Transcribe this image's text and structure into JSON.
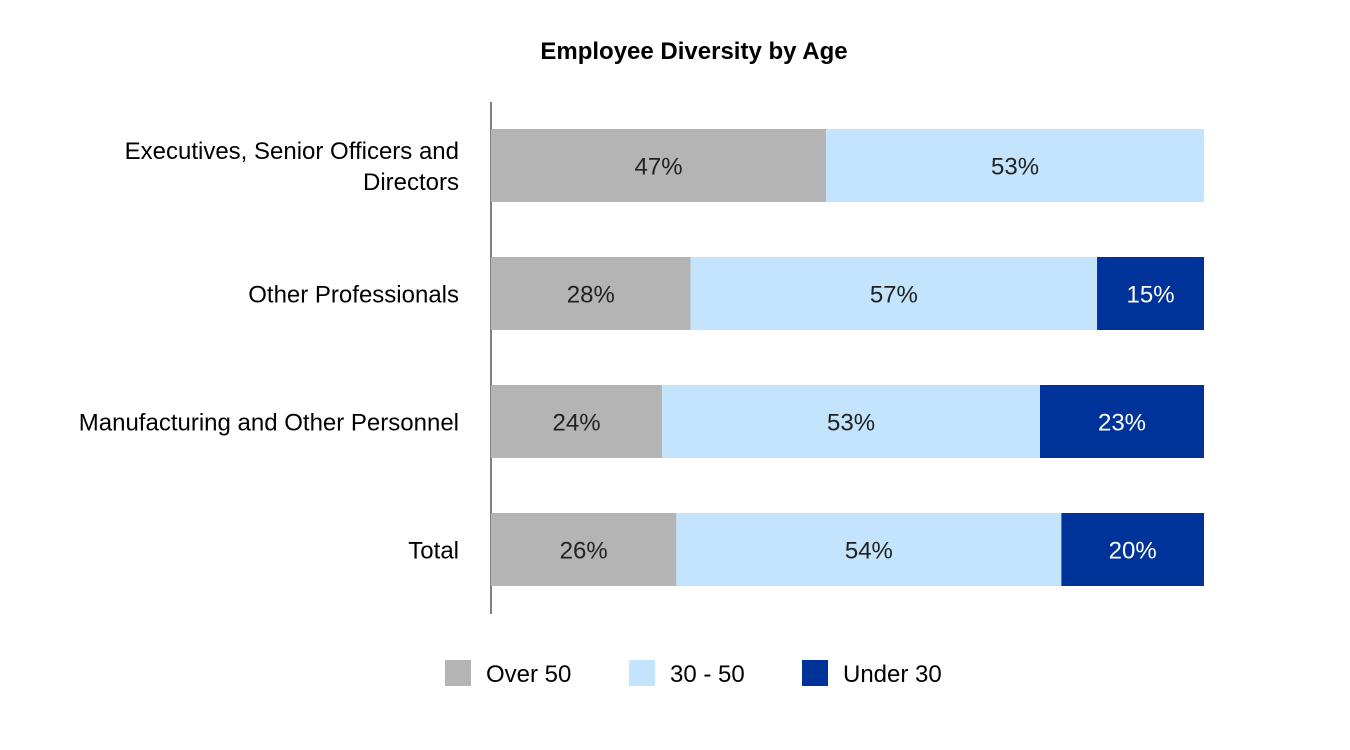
{
  "chart_data": {
    "type": "bar",
    "orientation": "horizontal",
    "stacked": true,
    "title": "Employee Diversity by Age",
    "categories": [
      [
        "Executives, Senior Officers and",
        "Directors"
      ],
      [
        "Other Professionals"
      ],
      [
        "Manufacturing and Other Personnel"
      ],
      [
        "Total"
      ]
    ],
    "series": [
      {
        "name": "Over 50",
        "color": "#b4b4b4",
        "label_color": "#222222",
        "values": [
          47,
          28,
          24,
          26
        ],
        "labels": [
          "47%",
          "28%",
          "24%",
          "26%"
        ]
      },
      {
        "name": "30 - 50",
        "color": "#c3e4fc",
        "label_color": "#222222",
        "values": [
          53,
          57,
          53,
          54
        ],
        "labels": [
          "53%",
          "57%",
          "53%",
          "54%"
        ]
      },
      {
        "name": "Under 30",
        "color": "#003399",
        "label_color": "#ffffff",
        "values": [
          0,
          15,
          23,
          20
        ],
        "labels": [
          "",
          "15%",
          "23%",
          "20%"
        ]
      }
    ],
    "xlim": [
      0,
      100
    ],
    "grid": false,
    "legend_position": "bottom-center",
    "axis_color": "#808080"
  }
}
